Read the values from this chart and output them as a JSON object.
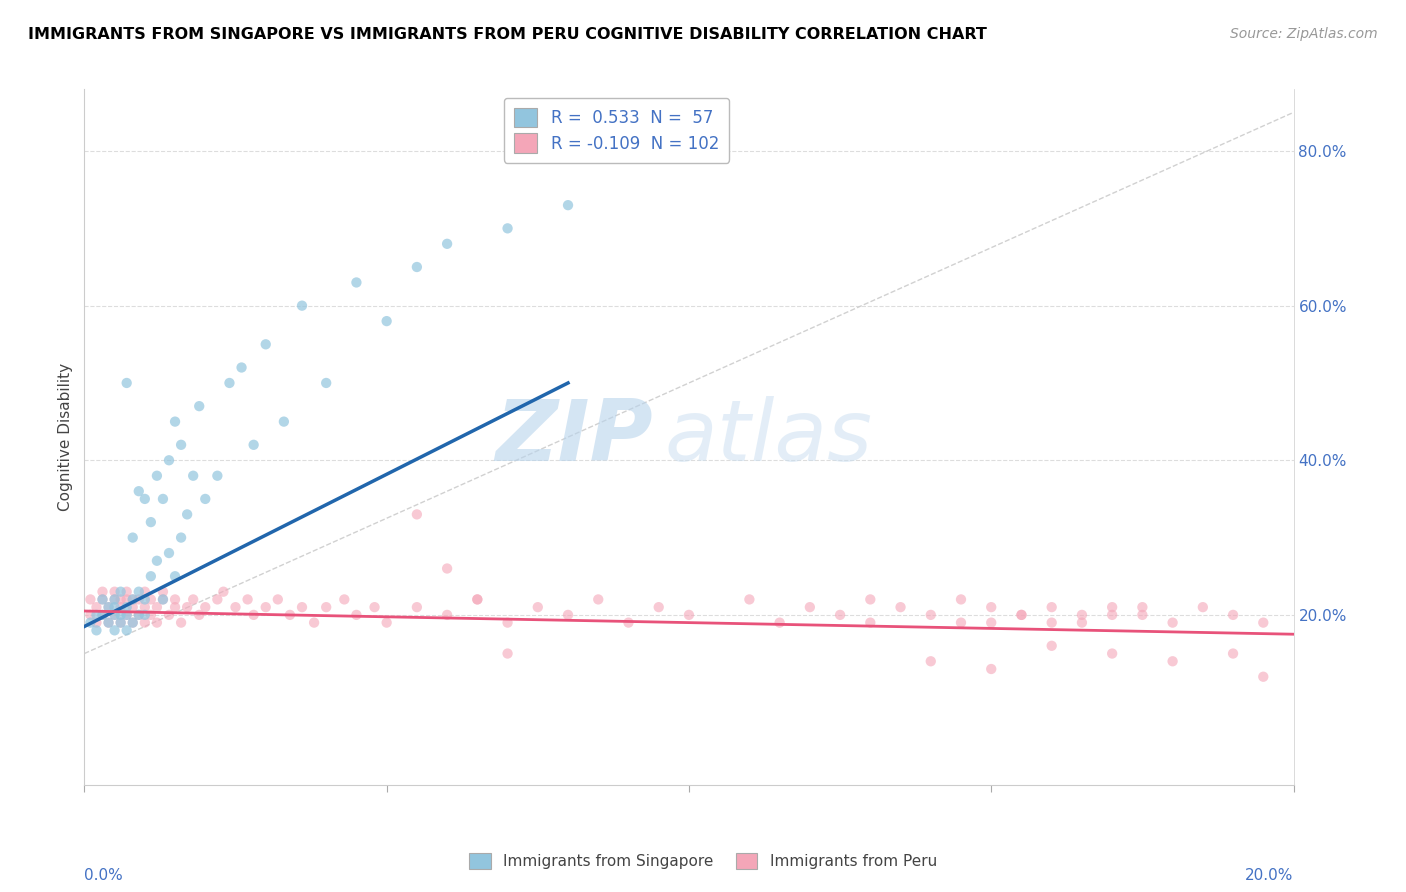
{
  "title": "IMMIGRANTS FROM SINGAPORE VS IMMIGRANTS FROM PERU COGNITIVE DISABILITY CORRELATION CHART",
  "source": "Source: ZipAtlas.com",
  "ylabel": "Cognitive Disability",
  "y_tick_positions": [
    0.0,
    0.2,
    0.4,
    0.6,
    0.8
  ],
  "y_tick_labels": [
    "",
    "20.0%",
    "40.0%",
    "60.0%",
    "80.0%"
  ],
  "xlim": [
    0.0,
    0.2
  ],
  "ylim": [
    -0.02,
    0.88
  ],
  "r_singapore": 0.533,
  "n_singapore": 57,
  "r_peru": -0.109,
  "n_peru": 102,
  "color_singapore": "#92C5DE",
  "color_peru": "#F4A6B8",
  "color_singapore_line": "#2166AC",
  "color_peru_line": "#E8527A",
  "legend_label_singapore": "Immigrants from Singapore",
  "legend_label_peru": "Immigrants from Peru",
  "watermark_zip": "ZIP",
  "watermark_atlas": "atlas",
  "sg_x": [
    0.001,
    0.002,
    0.002,
    0.003,
    0.003,
    0.004,
    0.004,
    0.005,
    0.005,
    0.005,
    0.005,
    0.006,
    0.006,
    0.006,
    0.007,
    0.007,
    0.007,
    0.007,
    0.008,
    0.008,
    0.008,
    0.009,
    0.009,
    0.009,
    0.01,
    0.01,
    0.01,
    0.011,
    0.011,
    0.012,
    0.012,
    0.013,
    0.013,
    0.014,
    0.014,
    0.015,
    0.015,
    0.016,
    0.016,
    0.017,
    0.018,
    0.019,
    0.02,
    0.022,
    0.024,
    0.026,
    0.028,
    0.03,
    0.033,
    0.036,
    0.04,
    0.045,
    0.05,
    0.055,
    0.06,
    0.07,
    0.08
  ],
  "sg_y": [
    0.19,
    0.18,
    0.2,
    0.2,
    0.22,
    0.19,
    0.21,
    0.18,
    0.2,
    0.21,
    0.22,
    0.19,
    0.2,
    0.23,
    0.18,
    0.2,
    0.21,
    0.5,
    0.19,
    0.22,
    0.3,
    0.2,
    0.23,
    0.36,
    0.2,
    0.22,
    0.35,
    0.25,
    0.32,
    0.27,
    0.38,
    0.22,
    0.35,
    0.28,
    0.4,
    0.25,
    0.45,
    0.3,
    0.42,
    0.33,
    0.38,
    0.47,
    0.35,
    0.38,
    0.5,
    0.52,
    0.42,
    0.55,
    0.45,
    0.6,
    0.5,
    0.63,
    0.58,
    0.65,
    0.68,
    0.7,
    0.73
  ],
  "pe_x": [
    0.001,
    0.001,
    0.002,
    0.002,
    0.003,
    0.003,
    0.003,
    0.004,
    0.004,
    0.005,
    0.005,
    0.005,
    0.006,
    0.006,
    0.006,
    0.007,
    0.007,
    0.007,
    0.008,
    0.008,
    0.008,
    0.009,
    0.009,
    0.01,
    0.01,
    0.01,
    0.011,
    0.011,
    0.012,
    0.012,
    0.013,
    0.013,
    0.014,
    0.015,
    0.015,
    0.016,
    0.017,
    0.018,
    0.019,
    0.02,
    0.022,
    0.023,
    0.025,
    0.027,
    0.028,
    0.03,
    0.032,
    0.034,
    0.036,
    0.038,
    0.04,
    0.043,
    0.045,
    0.048,
    0.05,
    0.055,
    0.06,
    0.065,
    0.07,
    0.075,
    0.08,
    0.085,
    0.09,
    0.095,
    0.1,
    0.11,
    0.115,
    0.12,
    0.125,
    0.13,
    0.135,
    0.14,
    0.145,
    0.15,
    0.155,
    0.16,
    0.165,
    0.17,
    0.175,
    0.18,
    0.185,
    0.19,
    0.195,
    0.145,
    0.15,
    0.155,
    0.16,
    0.165,
    0.17,
    0.175,
    0.055,
    0.06,
    0.065,
    0.07,
    0.13,
    0.14,
    0.15,
    0.16,
    0.17,
    0.18,
    0.19,
    0.195
  ],
  "pe_y": [
    0.2,
    0.22,
    0.19,
    0.21,
    0.2,
    0.22,
    0.23,
    0.19,
    0.21,
    0.2,
    0.22,
    0.23,
    0.19,
    0.21,
    0.22,
    0.2,
    0.22,
    0.23,
    0.19,
    0.21,
    0.22,
    0.2,
    0.22,
    0.19,
    0.21,
    0.23,
    0.2,
    0.22,
    0.19,
    0.21,
    0.22,
    0.23,
    0.2,
    0.21,
    0.22,
    0.19,
    0.21,
    0.22,
    0.2,
    0.21,
    0.22,
    0.23,
    0.21,
    0.22,
    0.2,
    0.21,
    0.22,
    0.2,
    0.21,
    0.19,
    0.21,
    0.22,
    0.2,
    0.21,
    0.19,
    0.21,
    0.2,
    0.22,
    0.19,
    0.21,
    0.2,
    0.22,
    0.19,
    0.21,
    0.2,
    0.22,
    0.19,
    0.21,
    0.2,
    0.19,
    0.21,
    0.2,
    0.19,
    0.21,
    0.2,
    0.19,
    0.2,
    0.21,
    0.2,
    0.19,
    0.21,
    0.2,
    0.19,
    0.22,
    0.19,
    0.2,
    0.21,
    0.19,
    0.2,
    0.21,
    0.33,
    0.26,
    0.22,
    0.15,
    0.22,
    0.14,
    0.13,
    0.16,
    0.15,
    0.14,
    0.15,
    0.12
  ]
}
